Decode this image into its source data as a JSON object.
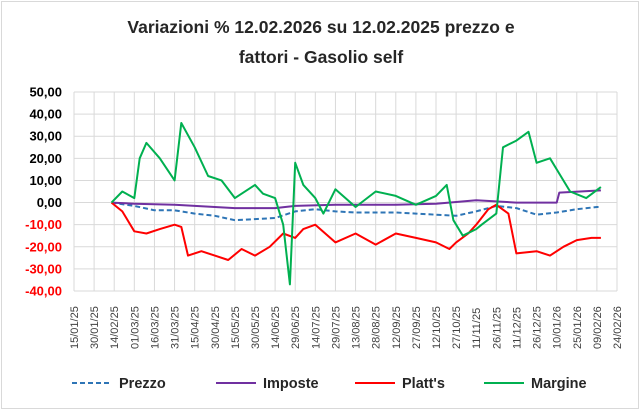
{
  "title_line1": "Variazioni % 12.02.2026 su 12.02.2025 prezzo e",
  "title_line2": "fattori - Gasolio self",
  "chart_data": {
    "type": "line",
    "title": "Variazioni % 12.02.2026 su 12.02.2025 prezzo e fattori - Gasolio self",
    "xlabel": "",
    "ylabel": "",
    "x_ticks": [
      "15/01/25",
      "30/01/25",
      "14/02/25",
      "01/03/25",
      "16/03/25",
      "31/03/25",
      "15/04/25",
      "30/04/25",
      "15/05/25",
      "30/05/25",
      "14/06/25",
      "29/06/25",
      "14/07/25",
      "29/07/25",
      "13/08/25",
      "28/08/25",
      "12/09/25",
      "27/09/25",
      "12/10/25",
      "27/10/25",
      "11/11/25",
      "26/11/25",
      "11/12/25",
      "26/12/25",
      "10/01/26",
      "25/01/26",
      "09/02/26",
      "24/02/26"
    ],
    "y_ticks": [
      "50,00",
      "40,00",
      "30,00",
      "20,00",
      "10,00",
      "0,00",
      "-10,00",
      "-20,00",
      "-30,00",
      "-40,00"
    ],
    "ylim": [
      -40,
      50
    ],
    "grid": true,
    "legend_position": "bottom",
    "negative_tick_color": "#ff0000",
    "series": [
      {
        "name": "Prezzo",
        "color": "#2e75b6",
        "style": "dashed",
        "points": [
          [
            "2025-02-12",
            0
          ],
          [
            "2025-03-01",
            -1.5
          ],
          [
            "2025-03-16",
            -3.5
          ],
          [
            "2025-03-31",
            -3.5
          ],
          [
            "2025-04-15",
            -5
          ],
          [
            "2025-04-30",
            -6
          ],
          [
            "2025-05-15",
            -8
          ],
          [
            "2025-05-30",
            -7.5
          ],
          [
            "2025-06-14",
            -7
          ],
          [
            "2025-06-29",
            -4
          ],
          [
            "2025-07-14",
            -3
          ],
          [
            "2025-07-29",
            -4
          ],
          [
            "2025-08-13",
            -4.5
          ],
          [
            "2025-08-28",
            -4.5
          ],
          [
            "2025-09-12",
            -4.5
          ],
          [
            "2025-09-27",
            -5
          ],
          [
            "2025-10-12",
            -5.5
          ],
          [
            "2025-10-27",
            -6
          ],
          [
            "2025-11-11",
            -4
          ],
          [
            "2025-11-26",
            -1.5
          ],
          [
            "2025-12-11",
            -2.5
          ],
          [
            "2025-12-26",
            -5.5
          ],
          [
            "2026-01-10",
            -4.5
          ],
          [
            "2026-01-25",
            -3
          ],
          [
            "2026-02-09",
            -2
          ],
          [
            "2026-02-12",
            -2
          ]
        ]
      },
      {
        "name": "Imposte",
        "color": "#7030a0",
        "style": "solid",
        "points": [
          [
            "2025-02-12",
            0
          ],
          [
            "2025-03-01",
            -0.5
          ],
          [
            "2025-03-31",
            -1
          ],
          [
            "2025-04-30",
            -2
          ],
          [
            "2025-05-15",
            -2.5
          ],
          [
            "2025-06-14",
            -2.5
          ],
          [
            "2025-06-29",
            -1.5
          ],
          [
            "2025-07-29",
            -1
          ],
          [
            "2025-09-12",
            -1
          ],
          [
            "2025-10-12",
            -0.5
          ],
          [
            "2025-11-11",
            1
          ],
          [
            "2025-12-11",
            0
          ],
          [
            "2026-01-10",
            0
          ],
          [
            "2026-01-12",
            4.5
          ],
          [
            "2026-02-12",
            5.5
          ]
        ]
      },
      {
        "name": "Platt's",
        "color": "#ff0000",
        "style": "solid",
        "points": [
          [
            "2025-02-12",
            0
          ],
          [
            "2025-02-20",
            -4
          ],
          [
            "2025-03-01",
            -13
          ],
          [
            "2025-03-10",
            -14
          ],
          [
            "2025-03-20",
            -12
          ],
          [
            "2025-03-31",
            -10
          ],
          [
            "2025-04-05",
            -11
          ],
          [
            "2025-04-10",
            -24
          ],
          [
            "2025-04-20",
            -22
          ],
          [
            "2025-04-30",
            -24
          ],
          [
            "2025-05-10",
            -26
          ],
          [
            "2025-05-20",
            -21
          ],
          [
            "2025-05-30",
            -24
          ],
          [
            "2025-06-10",
            -20
          ],
          [
            "2025-06-20",
            -14
          ],
          [
            "2025-06-29",
            -16
          ],
          [
            "2025-07-05",
            -12
          ],
          [
            "2025-07-14",
            -10
          ],
          [
            "2025-07-29",
            -18
          ],
          [
            "2025-08-13",
            -14
          ],
          [
            "2025-08-28",
            -19
          ],
          [
            "2025-09-12",
            -14
          ],
          [
            "2025-09-27",
            -16
          ],
          [
            "2025-10-12",
            -18
          ],
          [
            "2025-10-22",
            -21
          ],
          [
            "2025-10-27",
            -18
          ],
          [
            "2025-11-05",
            -14
          ],
          [
            "2025-11-11",
            -10
          ],
          [
            "2025-11-20",
            -3
          ],
          [
            "2025-11-26",
            -1
          ],
          [
            "2025-12-05",
            -5
          ],
          [
            "2025-12-11",
            -23
          ],
          [
            "2025-12-26",
            -22
          ],
          [
            "2026-01-05",
            -24
          ],
          [
            "2026-01-15",
            -20
          ],
          [
            "2026-01-25",
            -17
          ],
          [
            "2026-02-05",
            -16
          ],
          [
            "2026-02-12",
            -16
          ]
        ]
      },
      {
        "name": "Margine",
        "color": "#00b050",
        "style": "solid",
        "points": [
          [
            "2025-02-12",
            0
          ],
          [
            "2025-02-20",
            5
          ],
          [
            "2025-03-01",
            2
          ],
          [
            "2025-03-05",
            20
          ],
          [
            "2025-03-10",
            27
          ],
          [
            "2025-03-20",
            20
          ],
          [
            "2025-03-31",
            10
          ],
          [
            "2025-04-05",
            36
          ],
          [
            "2025-04-15",
            25
          ],
          [
            "2025-04-25",
            12
          ],
          [
            "2025-05-05",
            10
          ],
          [
            "2025-05-15",
            2
          ],
          [
            "2025-05-25",
            6
          ],
          [
            "2025-05-30",
            8
          ],
          [
            "2025-06-05",
            4
          ],
          [
            "2025-06-14",
            2
          ],
          [
            "2025-06-20",
            -10
          ],
          [
            "2025-06-25",
            -37
          ],
          [
            "2025-06-29",
            18
          ],
          [
            "2025-07-05",
            8
          ],
          [
            "2025-07-14",
            2
          ],
          [
            "2025-07-20",
            -5
          ],
          [
            "2025-07-29",
            6
          ],
          [
            "2025-08-13",
            -2
          ],
          [
            "2025-08-28",
            5
          ],
          [
            "2025-09-12",
            3
          ],
          [
            "2025-09-27",
            -1
          ],
          [
            "2025-10-12",
            3
          ],
          [
            "2025-10-20",
            8
          ],
          [
            "2025-10-25",
            -8
          ],
          [
            "2025-11-01",
            -15
          ],
          [
            "2025-11-11",
            -12
          ],
          [
            "2025-11-15",
            -10
          ],
          [
            "2025-11-26",
            -5
          ],
          [
            "2025-12-01",
            25
          ],
          [
            "2025-12-11",
            28
          ],
          [
            "2025-12-20",
            32
          ],
          [
            "2025-12-26",
            18
          ],
          [
            "2026-01-05",
            20
          ],
          [
            "2026-01-10",
            15
          ],
          [
            "2026-01-20",
            5
          ],
          [
            "2026-02-01",
            2
          ],
          [
            "2026-02-12",
            7
          ]
        ]
      }
    ]
  }
}
